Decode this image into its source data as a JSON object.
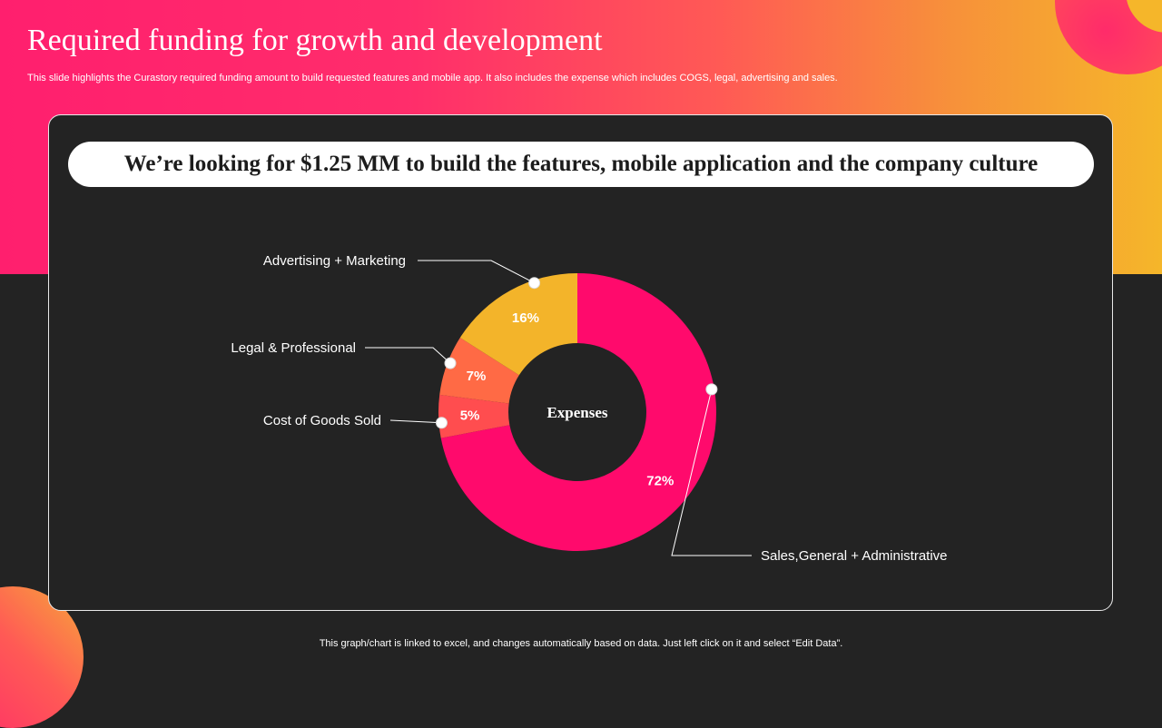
{
  "slide": {
    "title": "Required funding for growth and development",
    "subtitle": "This slide highlights the Curastory required funding amount to build requested features and mobile app. It also includes the expense which includes COGS, legal, advertising and sales.",
    "headline": "We’re looking for $1.25 MM to build the features, mobile application and the company culture",
    "footer": "This graph/chart is linked to excel,  and changes automatically based on data. Just left click on it and select “Edit Data”."
  },
  "colors": {
    "pink": "#ff0a6c",
    "coral": "#ff4d4f",
    "orange": "#ff6a45",
    "yellow": "#f3b42a",
    "panel": "#232323"
  },
  "chart_data": {
    "type": "pie",
    "style": "donut",
    "title": "",
    "center_label": "Expenses",
    "categories": [
      "Sales,General + Administrative",
      "Cost of Goods Sold",
      "Legal & Professional",
      "Advertising + Marketing"
    ],
    "values": [
      72,
      5,
      7,
      16
    ],
    "labels": [
      "72%",
      "5%",
      "7%",
      "16%"
    ],
    "colors": [
      "#ff0a6c",
      "#ff4d4f",
      "#ff6a45",
      "#f3b42a"
    ],
    "legend": "none"
  }
}
